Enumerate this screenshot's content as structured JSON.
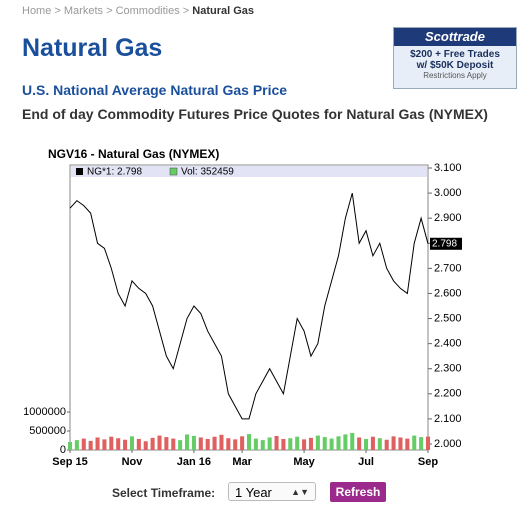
{
  "breadcrumb": [
    "Home",
    "Markets",
    "Commodities",
    "Natural Gas"
  ],
  "ad": {
    "brand": "Scottrade",
    "line1": "$200 + Free Trades",
    "line2": "w/ $50K Deposit",
    "note": "Restrictions Apply"
  },
  "header": {
    "title": "Natural Gas",
    "link": "U.S. National Average Natural Gas Price",
    "subtitle": "End of day Commodity Futures Price Quotes for Natural Gas (NYMEX)"
  },
  "chart_data": {
    "type": "line",
    "title": "NGV16 - Natural Gas (NYMEX)",
    "legend": [
      "NG*1: 2.798",
      "Vol: 352459"
    ],
    "last_label": "2.798",
    "last_value": 2.798,
    "categories": [
      "Sep 15",
      null,
      null,
      null,
      null,
      null,
      null,
      null,
      null,
      "Nov",
      null,
      null,
      null,
      null,
      null,
      null,
      null,
      null,
      "Jan 16",
      null,
      null,
      null,
      null,
      null,
      null,
      "Mar",
      null,
      null,
      null,
      null,
      null,
      null,
      null,
      null,
      "May",
      null,
      null,
      null,
      null,
      null,
      null,
      null,
      null,
      "Jul",
      null,
      null,
      null,
      null,
      null,
      null,
      null,
      null,
      "Sep"
    ],
    "series": [
      {
        "name": "NG*1",
        "color": "#000000",
        "axis": "y2",
        "values": [
          2.94,
          2.97,
          2.95,
          2.92,
          2.8,
          2.78,
          2.7,
          2.6,
          2.55,
          2.65,
          2.62,
          2.6,
          2.55,
          2.45,
          2.35,
          2.3,
          2.4,
          2.5,
          2.55,
          2.52,
          2.45,
          2.4,
          2.35,
          2.2,
          2.15,
          2.1,
          2.1,
          2.2,
          2.25,
          2.3,
          2.25,
          2.2,
          2.35,
          2.5,
          2.45,
          2.35,
          2.4,
          2.55,
          2.65,
          2.75,
          2.9,
          3.0,
          2.8,
          2.85,
          2.75,
          2.8,
          2.7,
          2.65,
          2.62,
          2.6,
          2.8,
          2.9,
          2.798
        ]
      },
      {
        "name": "Vol",
        "type": "bar",
        "up_color": "#66cc66",
        "down_color": "#e06060",
        "values": [
          210000,
          260000,
          300000,
          240000,
          330000,
          280000,
          350000,
          310000,
          270000,
          360000,
          290000,
          230000,
          320000,
          380000,
          340000,
          300000,
          260000,
          410000,
          370000,
          330000,
          290000,
          350000,
          400000,
          310000,
          280000,
          360000,
          420000,
          300000,
          260000,
          330000,
          370000,
          290000,
          310000,
          350000,
          280000,
          320000,
          380000,
          340000,
          300000,
          360000,
          410000,
          450000,
          330000,
          290000,
          350000,
          310000,
          270000,
          360000,
          330000,
          300000,
          380000,
          340000,
          352459
        ]
      }
    ],
    "ylim": [
      0,
      7500000
    ],
    "yticks": [
      0,
      500000,
      1000000
    ],
    "y2lim": [
      1.976,
      3.112
    ],
    "y2ticks": [
      {
        "value": 2.0,
        "label": "2.000"
      },
      {
        "value": 2.1,
        "label": "2.100"
      },
      {
        "value": 2.2,
        "label": "2.200"
      },
      {
        "value": 2.3,
        "label": "2.300"
      },
      {
        "value": 2.4,
        "label": "2.400"
      },
      {
        "value": 2.5,
        "label": "2.500"
      },
      {
        "value": 2.6,
        "label": "2.600"
      },
      {
        "value": 2.7,
        "label": "2.700"
      },
      {
        "value": 2.8,
        "label": "2.800"
      },
      {
        "value": 2.9,
        "label": "2.900"
      },
      {
        "value": 3.0,
        "label": "3.000"
      },
      {
        "value": 3.1,
        "label": "3.100"
      }
    ]
  },
  "controls": {
    "label": "Select Timeframe:",
    "selected": "1 Year",
    "button": "Refresh"
  }
}
